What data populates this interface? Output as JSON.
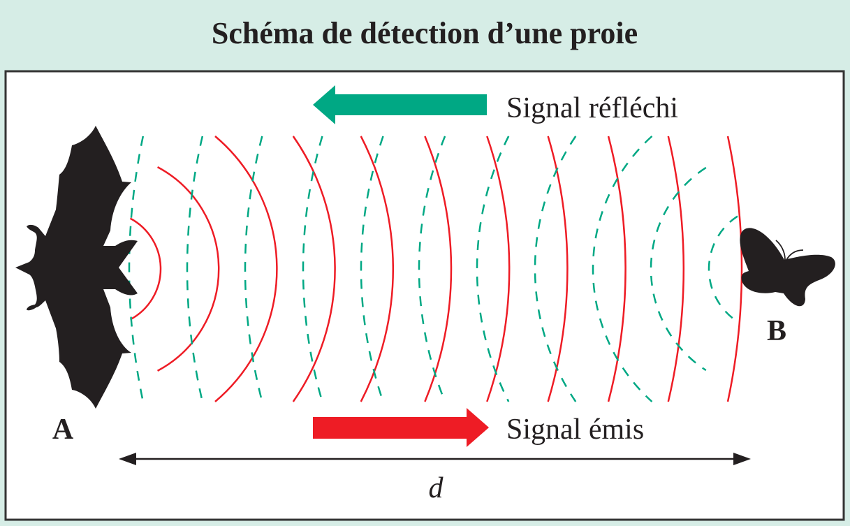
{
  "title": "Schéma de détection d’une proie",
  "labels": {
    "reflected": "Signal réfléchi",
    "emitted": "Signal émis",
    "point_a": "A",
    "point_b": "B",
    "distance": "d"
  },
  "icons": {
    "bat": "bat-silhouette-icon",
    "prey": "butterfly-silhouette-icon"
  },
  "colors": {
    "background": "#d6ede6",
    "emitted": "#ee1c25",
    "reflected": "#00a884",
    "silhouette": "#231f20"
  },
  "wave_counts": {
    "emitted_arcs": 11,
    "reflected_arcs": 11
  }
}
